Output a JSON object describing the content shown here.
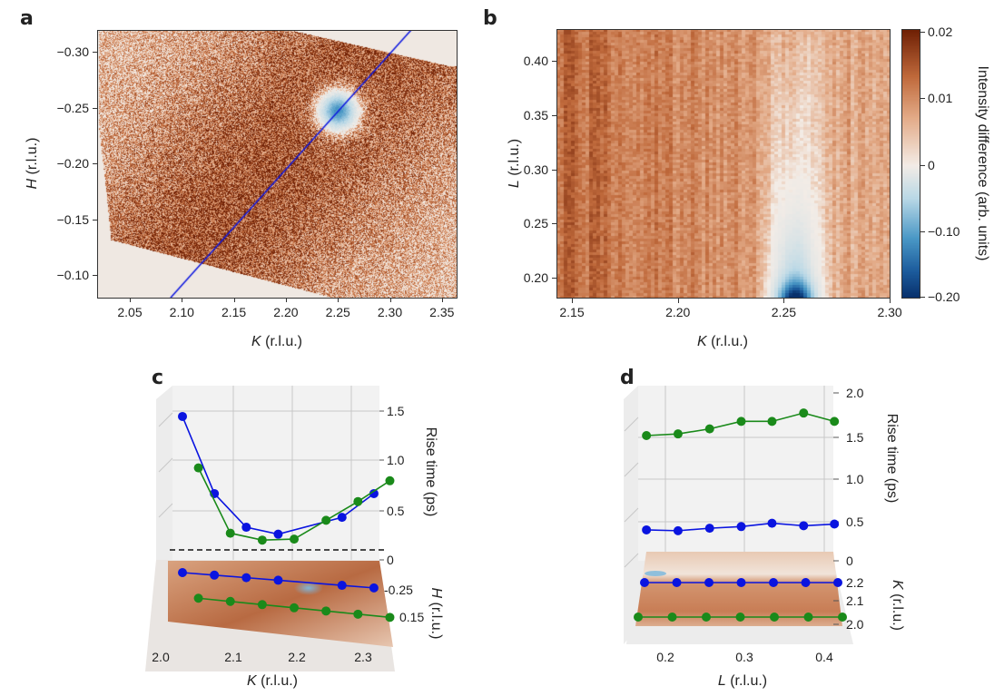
{
  "panels": {
    "a": {
      "label": "a"
    },
    "b": {
      "label": "b"
    },
    "c": {
      "label": "c"
    },
    "d": {
      "label": "d"
    }
  },
  "colors": {
    "blue_series": "#0a14e0",
    "green_series": "#1a8a1a",
    "cmap_positive": "#7a2505",
    "cmap_zero": "#f3ece6",
    "cmap_negative": "#08306b"
  },
  "chart_data": [
    {
      "type": "heatmap",
      "panel": "a",
      "xlabel_var": "K",
      "xlabel_unit": " (r.l.u.)",
      "ylabel_var": "H",
      "ylabel_unit": " (r.l.u.)",
      "xlim": [
        2.025,
        2.365
      ],
      "ylim": [
        -0.08,
        -0.32
      ],
      "xticks": [
        "2.05",
        "2.10",
        "2.15",
        "2.20",
        "2.25",
        "2.30",
        "2.35"
      ],
      "yticks": [
        "−0.30",
        "−0.25",
        "−0.20",
        "−0.15",
        "−0.10"
      ],
      "features": {
        "negative_peak": {
          "K": 2.25,
          "H": -0.25
        },
        "cut_line": {
          "from": {
            "K": 2.095,
            "H": -0.08
          },
          "to": {
            "K": 2.325,
            "H": -0.32
          }
        }
      }
    },
    {
      "type": "heatmap",
      "panel": "b",
      "xlabel_var": "K",
      "xlabel_unit": " (r.l.u.)",
      "ylabel_var": "L",
      "ylabel_unit": " (r.l.u.)",
      "xlim": [
        2.14,
        2.3
      ],
      "ylim": [
        0.18,
        0.43
      ],
      "xticks": [
        "2.15",
        "2.20",
        "2.25",
        "2.30"
      ],
      "yticks": [
        "0.40",
        "0.35",
        "0.30",
        "0.25",
        "0.20"
      ],
      "features": {
        "negative_peak": {
          "K": 2.252,
          "L": 0.18
        }
      },
      "colorbar": {
        "label": "Intensity difference (arb. units)",
        "ticks": [
          "0.02",
          "0.01",
          "0",
          "−0.10",
          "−0.20"
        ],
        "range": [
          -0.2,
          0.02
        ]
      }
    },
    {
      "type": "line",
      "panel": "c",
      "xlabel_var": "K",
      "xlabel_unit": " (r.l.u.)",
      "zlabel": "Rise time (ps)",
      "ylabel_var": "H",
      "ylabel_unit": " (r.l.u.)",
      "xticks": [
        "2.0",
        "2.1",
        "2.2",
        "2.3"
      ],
      "zticks": [
        "1.5",
        "1.0",
        "0.5",
        "0"
      ],
      "yticks": [
        "-0.25",
        "0.15"
      ],
      "series": [
        {
          "color": "#0a14e0",
          "H": -0.25,
          "x": [
            2.025,
            2.075,
            2.125,
            2.175,
            2.275,
            2.325
          ],
          "values": [
            1.45,
            0.67,
            0.33,
            0.26,
            0.43,
            0.67
          ]
        },
        {
          "color": "#1a8a1a",
          "H": -0.15,
          "x": [
            2.05,
            2.1,
            2.15,
            2.2,
            2.25,
            2.3,
            2.35
          ],
          "values": [
            0.93,
            0.27,
            0.2,
            0.21,
            0.4,
            0.59,
            0.8
          ]
        }
      ]
    },
    {
      "type": "line",
      "panel": "d",
      "xlabel_var": "L",
      "xlabel_unit": " (r.l.u.)",
      "zlabel": "Rise time (ps)",
      "ylabel_var": "K",
      "ylabel_unit": " (r.l.u.)",
      "xticks": [
        "0.2",
        "0.3",
        "0.4"
      ],
      "zticks": [
        "2.0",
        "1.5",
        "1.0",
        "0.5",
        "0"
      ],
      "yticks": [
        "2.2",
        "2.1",
        "2.0"
      ],
      "series": [
        {
          "color": "#0a14e0",
          "K": 2.2,
          "x": [
            0.176,
            0.216,
            0.256,
            0.296,
            0.335,
            0.375,
            0.414
          ],
          "values": [
            0.37,
            0.36,
            0.39,
            0.41,
            0.45,
            0.42,
            0.44
          ]
        },
        {
          "color": "#1a8a1a",
          "K": 2.0,
          "x": [
            0.176,
            0.216,
            0.256,
            0.296,
            0.335,
            0.375,
            0.414
          ],
          "values": [
            1.5,
            1.52,
            1.58,
            1.67,
            1.67,
            1.77,
            1.67
          ]
        }
      ]
    }
  ]
}
